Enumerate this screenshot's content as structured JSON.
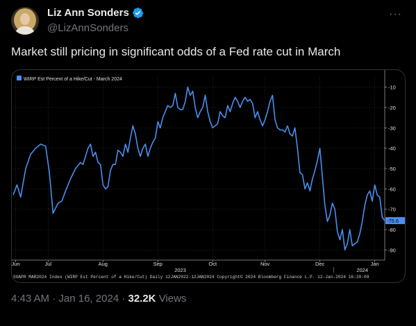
{
  "author": {
    "display_name": "Liz Ann Sonders",
    "handle": "@LizAnnSonders",
    "verified": true
  },
  "tweet": {
    "text": "Market still pricing in significant odds of a Fed rate cut in March",
    "time": "4:43 AM",
    "separator": "·",
    "date": "Jan 16, 2024",
    "views_count": "32.2K",
    "views_label": "Views"
  },
  "icons": {
    "more": "more-icon",
    "verified": "verified-badge-icon"
  },
  "chart_data": {
    "type": "line",
    "series": [
      {
        "name": "WIRP Est Percent of a Hike/Cut - March 2024",
        "color": "#4a8ff0",
        "points": [
          [
            0,
            -63
          ],
          [
            1.5,
            -58
          ],
          [
            3,
            -64
          ],
          [
            5,
            -50
          ],
          [
            7,
            -43
          ],
          [
            9,
            -40
          ],
          [
            11,
            -38
          ],
          [
            13,
            -39
          ],
          [
            14.5,
            -52
          ],
          [
            16,
            -72
          ],
          [
            18,
            -67
          ],
          [
            19.5,
            -66
          ],
          [
            21,
            -61
          ],
          [
            23,
            -55
          ],
          [
            25,
            -50
          ],
          [
            27,
            -47
          ],
          [
            28,
            -48
          ],
          [
            30,
            -40
          ],
          [
            31,
            -38
          ],
          [
            32,
            -44
          ],
          [
            33,
            -42
          ],
          [
            34,
            -47
          ],
          [
            35,
            -48
          ],
          [
            36,
            -58
          ],
          [
            37,
            -60
          ],
          [
            38,
            -59
          ],
          [
            39,
            -51
          ],
          [
            40,
            -48
          ],
          [
            41,
            -48
          ],
          [
            42,
            -41
          ],
          [
            43,
            -42
          ],
          [
            44,
            -44
          ],
          [
            45,
            -38
          ],
          [
            46,
            -42
          ],
          [
            47,
            -35
          ],
          [
            48,
            -29
          ],
          [
            49,
            -33
          ],
          [
            50,
            -40
          ],
          [
            51,
            -44
          ],
          [
            52,
            -40
          ],
          [
            53,
            -38
          ],
          [
            54,
            -44
          ],
          [
            55,
            -40
          ],
          [
            56,
            -37
          ],
          [
            57,
            -35
          ],
          [
            58,
            -27
          ],
          [
            59,
            -30
          ],
          [
            60,
            -25
          ],
          [
            61,
            -22
          ],
          [
            62,
            -19
          ],
          [
            63,
            -20
          ],
          [
            64,
            -19
          ],
          [
            65,
            -13
          ],
          [
            66,
            -20
          ],
          [
            67,
            -21
          ],
          [
            68,
            -21
          ],
          [
            69,
            -17
          ],
          [
            70,
            -10
          ],
          [
            71,
            -14
          ],
          [
            72,
            -12
          ],
          [
            73,
            -20
          ],
          [
            74,
            -25
          ],
          [
            75,
            -22
          ],
          [
            76,
            -20
          ],
          [
            77,
            -14
          ],
          [
            78,
            -22
          ],
          [
            79,
            -27
          ],
          [
            80,
            -30
          ],
          [
            81,
            -29
          ],
          [
            82,
            -28
          ],
          [
            83,
            -22
          ],
          [
            84,
            -24
          ],
          [
            85,
            -25
          ],
          [
            86,
            -19
          ],
          [
            87,
            -22
          ],
          [
            88,
            -18
          ],
          [
            89,
            -15
          ],
          [
            90,
            -17
          ],
          [
            91,
            -20
          ],
          [
            92,
            -17
          ],
          [
            93,
            -15
          ],
          [
            94,
            -17
          ],
          [
            95,
            -16
          ],
          [
            96,
            -18
          ],
          [
            97,
            -25
          ],
          [
            98,
            -22
          ],
          [
            99,
            -26
          ],
          [
            100,
            -29
          ],
          [
            101,
            -26
          ],
          [
            102,
            -22
          ],
          [
            103,
            -17
          ],
          [
            104,
            -14
          ],
          [
            105,
            -26
          ],
          [
            106,
            -30
          ],
          [
            107,
            -31
          ],
          [
            108,
            -31
          ],
          [
            109,
            -32
          ],
          [
            110,
            -29
          ],
          [
            111,
            -33
          ],
          [
            112,
            -34
          ],
          [
            113,
            -30
          ],
          [
            114,
            -40
          ],
          [
            115,
            -52
          ],
          [
            116,
            -53
          ],
          [
            117,
            -60
          ],
          [
            118,
            -57
          ],
          [
            119,
            -61
          ],
          [
            120,
            -55
          ],
          [
            121,
            -51
          ],
          [
            122,
            -46
          ],
          [
            123,
            -40
          ],
          [
            124,
            -54
          ],
          [
            125,
            -68
          ],
          [
            126,
            -76
          ],
          [
            127,
            -73
          ],
          [
            128,
            -67
          ],
          [
            129,
            -70
          ],
          [
            130,
            -81
          ],
          [
            131,
            -85
          ],
          [
            132,
            -80
          ],
          [
            133,
            -90
          ],
          [
            134,
            -87
          ],
          [
            135,
            -80
          ],
          [
            136,
            -88
          ],
          [
            137,
            -87
          ],
          [
            138,
            -86
          ],
          [
            139,
            -82
          ],
          [
            140,
            -76
          ],
          [
            141,
            -68
          ],
          [
            142,
            -63
          ],
          [
            143,
            -61
          ],
          [
            144,
            -66
          ],
          [
            145,
            -58
          ],
          [
            146,
            -63
          ],
          [
            147,
            -64
          ],
          [
            148,
            -74
          ],
          [
            149,
            -75.6
          ]
        ],
        "last_value": "-75.6"
      }
    ],
    "x_range": [
      0,
      149
    ],
    "ylim": [
      -95,
      -5
    ],
    "y_ticks": [
      "-10",
      "-20",
      "-30",
      "-40",
      "-50",
      "-60",
      "-70",
      "-80",
      "-90"
    ],
    "x_tick_labels": [
      {
        "label": "Jun",
        "x": 1
      },
      {
        "label": "Jul",
        "x": 14
      },
      {
        "label": "Aug",
        "x": 36
      },
      {
        "label": "Sep",
        "x": 58
      },
      {
        "label": "Oct",
        "x": 80
      },
      {
        "label": "Nov",
        "x": 101
      },
      {
        "label": "Dec",
        "x": 123
      },
      {
        "label": "Jan",
        "x": 145
      }
    ],
    "year_labels": [
      {
        "label": "2023",
        "x": 67
      },
      {
        "label": "2024",
        "x": 140
      }
    ],
    "grid": true,
    "legend": "top-left",
    "footer": "SOAPR MAR2024 Index (WIRP Est Percent of a Hike/Cut)  Daily 12JAN2022-12JAN2024      Copyright© 2024 Bloomberg Finance L.P.      12-Jan-2024 16:20:09"
  }
}
